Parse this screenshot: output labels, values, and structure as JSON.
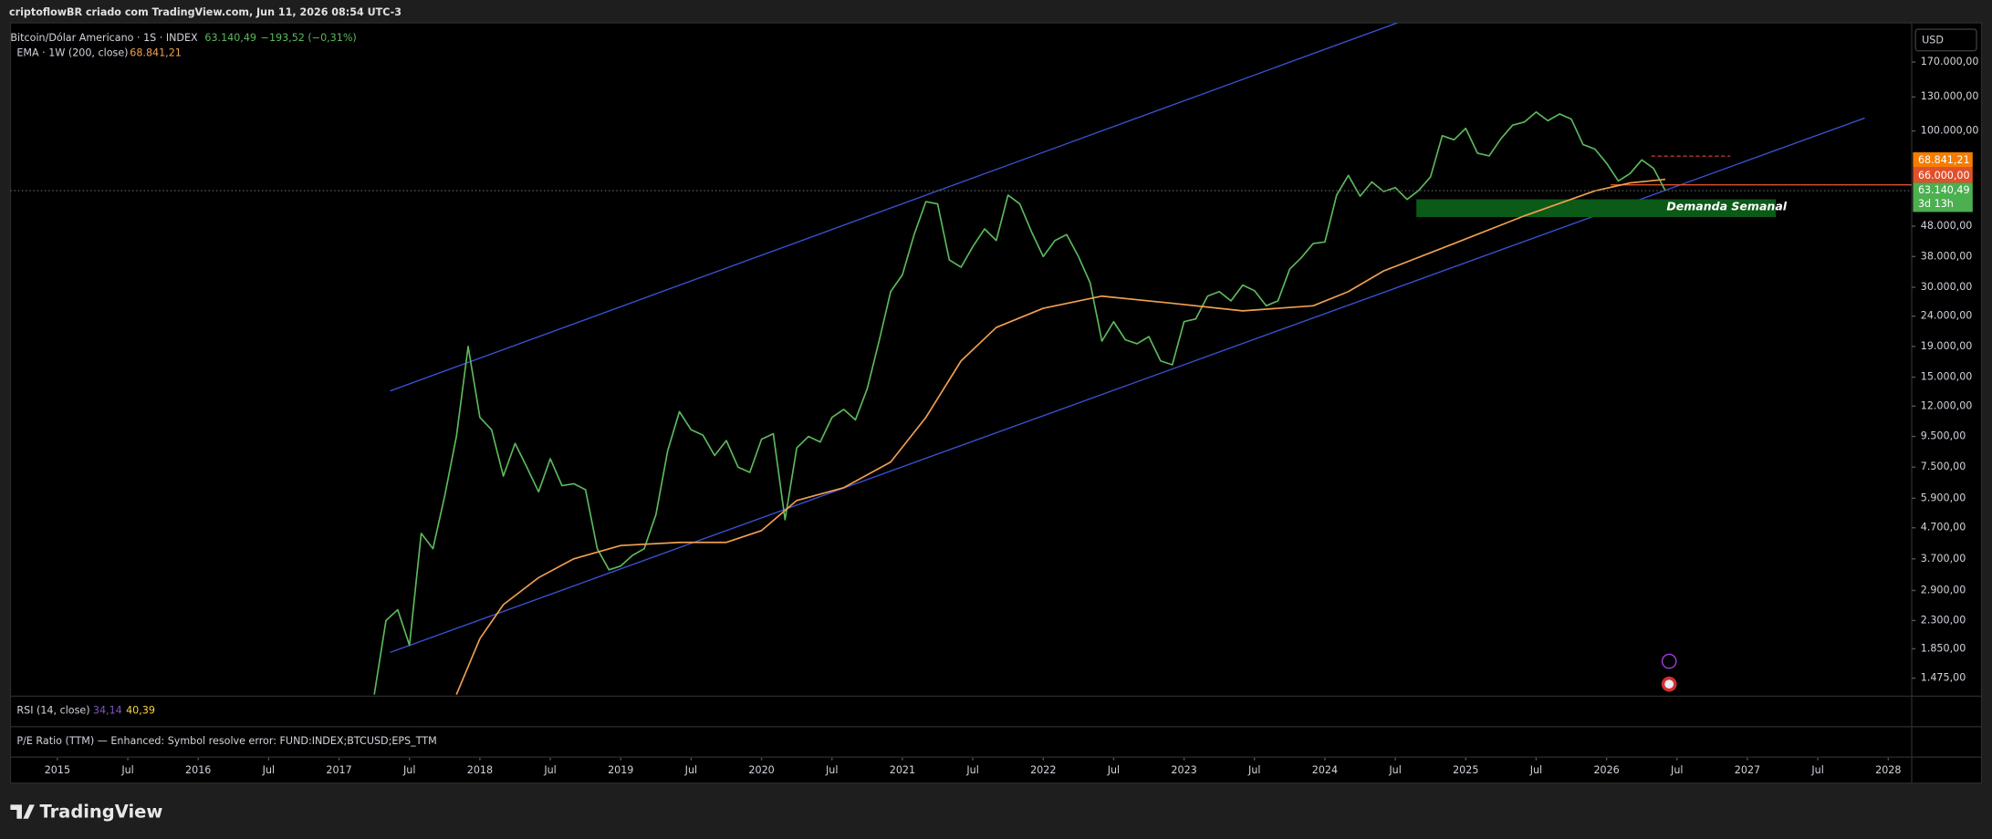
{
  "header": {
    "top_bar": "criptoflowBR criado com TradingView.com, Jun 11, 2026 08:54 UTC-3",
    "currency": "USD"
  },
  "chart_data": {
    "type": "line",
    "log_scale": true,
    "grid": false,
    "xlim": [
      "2014-09",
      "2028-03"
    ],
    "ylim": [
      1290,
      230000
    ],
    "yticks": [
      {
        "value": 170000,
        "label": "170.000,00"
      },
      {
        "value": 130000,
        "label": "130.000,00"
      },
      {
        "value": 100000,
        "label": "100.000,00"
      },
      {
        "value": 48000,
        "label": "48.000,00"
      },
      {
        "value": 38000,
        "label": "38.000,00"
      },
      {
        "value": 30000,
        "label": "30.000,00"
      },
      {
        "value": 24000,
        "label": "24.000,00"
      },
      {
        "value": 19000,
        "label": "19.000,00"
      },
      {
        "value": 15000,
        "label": "15.000,00"
      },
      {
        "value": 12000,
        "label": "12.000,00"
      },
      {
        "value": 9500,
        "label": "9.500,00"
      },
      {
        "value": 7500,
        "label": "7.500,00"
      },
      {
        "value": 5900,
        "label": "5.900,00"
      },
      {
        "value": 4700,
        "label": "4.700,00"
      },
      {
        "value": 3700,
        "label": "3.700,00"
      },
      {
        "value": 2900,
        "label": "2.900,00"
      },
      {
        "value": 2300,
        "label": "2.300,00"
      },
      {
        "value": 1850,
        "label": "1.850,00"
      },
      {
        "value": 1475,
        "label": "1.475,00"
      }
    ],
    "xticks": [
      {
        "value": "2015-01",
        "label": "2015"
      },
      {
        "value": "2015-07",
        "label": "Jul"
      },
      {
        "value": "2016-01",
        "label": "2016"
      },
      {
        "value": "2016-07",
        "label": "Jul"
      },
      {
        "value": "2017-01",
        "label": "2017"
      },
      {
        "value": "2017-07",
        "label": "Jul"
      },
      {
        "value": "2018-01",
        "label": "2018"
      },
      {
        "value": "2018-07",
        "label": "Jul"
      },
      {
        "value": "2019-01",
        "label": "2019"
      },
      {
        "value": "2019-07",
        "label": "Jul"
      },
      {
        "value": "2020-01",
        "label": "2020"
      },
      {
        "value": "2020-07",
        "label": "Jul"
      },
      {
        "value": "2021-01",
        "label": "2021"
      },
      {
        "value": "2021-07",
        "label": "Jul"
      },
      {
        "value": "2022-01",
        "label": "2022"
      },
      {
        "value": "2022-07",
        "label": "Jul"
      },
      {
        "value": "2023-01",
        "label": "2023"
      },
      {
        "value": "2023-07",
        "label": "Jul"
      },
      {
        "value": "2024-01",
        "label": "2024"
      },
      {
        "value": "2024-07",
        "label": "Jul"
      },
      {
        "value": "2025-01",
        "label": "2025"
      },
      {
        "value": "2025-07",
        "label": "Jul"
      },
      {
        "value": "2026-01",
        "label": "2026"
      },
      {
        "value": "2026-07",
        "label": "Jul"
      },
      {
        "value": "2027-01",
        "label": "2027"
      },
      {
        "value": "2027-07",
        "label": "Jul"
      },
      {
        "value": "2028-01",
        "label": "2028"
      }
    ],
    "series": [
      {
        "name": "Bitcoin/Dólar Americano · 1S · INDEX",
        "color": "#5cb85c",
        "last_value_label": "63.140,49",
        "change_label": "−193,52 (−0,31%)",
        "countdown": "3d 13h",
        "x": [
          "2017-04",
          "2017-05",
          "2017-06",
          "2017-07",
          "2017-08",
          "2017-09",
          "2017-10",
          "2017-11",
          "2017-12",
          "2018-01",
          "2018-02",
          "2018-03",
          "2018-04",
          "2018-05",
          "2018-06",
          "2018-07",
          "2018-08",
          "2018-09",
          "2018-10",
          "2018-11",
          "2018-12",
          "2019-01",
          "2019-02",
          "2019-03",
          "2019-04",
          "2019-05",
          "2019-06",
          "2019-07",
          "2019-08",
          "2019-09",
          "2019-10",
          "2019-11",
          "2019-12",
          "2020-01",
          "2020-02",
          "2020-03",
          "2020-04",
          "2020-05",
          "2020-06",
          "2020-07",
          "2020-08",
          "2020-09",
          "2020-10",
          "2020-11",
          "2020-12",
          "2021-01",
          "2021-02",
          "2021-03",
          "2021-04",
          "2021-05",
          "2021-06",
          "2021-07",
          "2021-08",
          "2021-09",
          "2021-10",
          "2021-11",
          "2021-12",
          "2022-01",
          "2022-02",
          "2022-03",
          "2022-04",
          "2022-05",
          "2022-06",
          "2022-07",
          "2022-08",
          "2022-09",
          "2022-10",
          "2022-11",
          "2022-12",
          "2023-01",
          "2023-02",
          "2023-03",
          "2023-04",
          "2023-05",
          "2023-06",
          "2023-07",
          "2023-08",
          "2023-09",
          "2023-10",
          "2023-11",
          "2023-12",
          "2024-01",
          "2024-02",
          "2024-03",
          "2024-04",
          "2024-05",
          "2024-06",
          "2024-07",
          "2024-08",
          "2024-09",
          "2024-10",
          "2024-11",
          "2024-12",
          "2025-01",
          "2025-02",
          "2025-03",
          "2025-04",
          "2025-05",
          "2025-06",
          "2025-07",
          "2025-08",
          "2025-09",
          "2025-10",
          "2025-11",
          "2025-12",
          "2026-01",
          "2026-02",
          "2026-03",
          "2026-04",
          "2026-05",
          "2026-06"
        ],
        "values": [
          1300,
          2300,
          2500,
          1900,
          4500,
          4000,
          6000,
          9500,
          19000,
          11000,
          10000,
          7000,
          9000,
          7500,
          6200,
          8000,
          6500,
          6600,
          6300,
          4000,
          3400,
          3500,
          3800,
          4000,
          5200,
          8500,
          11500,
          10000,
          9600,
          8200,
          9200,
          7500,
          7200,
          9300,
          9700,
          5000,
          8700,
          9500,
          9100,
          11000,
          11700,
          10800,
          13700,
          19700,
          29000,
          33000,
          45000,
          58000,
          57000,
          37000,
          35000,
          41000,
          47000,
          43000,
          61000,
          57000,
          46000,
          38000,
          43000,
          45000,
          38000,
          31000,
          19800,
          23000,
          20000,
          19400,
          20500,
          17000,
          16500,
          23000,
          23500,
          28000,
          29000,
          27000,
          30500,
          29200,
          26000,
          27000,
          34500,
          37700,
          42000,
          42500,
          61000,
          71000,
          60500,
          67500,
          62700,
          64600,
          59000,
          63300,
          70200,
          96400,
          93400,
          102000,
          84300,
          82500,
          94200,
          104600,
          107100,
          115700,
          108200,
          114000,
          109500,
          90000,
          87000,
          78000,
          68000,
          72000,
          80000,
          75000,
          63140.49
        ]
      },
      {
        "name": "EMA · 1W (200, close)",
        "color": "#f0a050",
        "last_value_label": "68.841,21",
        "x": [
          "2017-11",
          "2018-01",
          "2018-03",
          "2018-06",
          "2018-09",
          "2019-01",
          "2019-06",
          "2019-10",
          "2020-01",
          "2020-04",
          "2020-08",
          "2020-12",
          "2021-03",
          "2021-06",
          "2021-09",
          "2022-01",
          "2022-06",
          "2022-12",
          "2023-06",
          "2023-12",
          "2024-03",
          "2024-06",
          "2024-12",
          "2025-06",
          "2025-12",
          "2026-03",
          "2026-06"
        ],
        "values": [
          1300,
          2000,
          2600,
          3200,
          3700,
          4100,
          4200,
          4200,
          4600,
          5800,
          6400,
          7800,
          11000,
          17000,
          22000,
          25500,
          28000,
          26500,
          25000,
          26000,
          29000,
          34000,
          42000,
          52000,
          63000,
          67000,
          68841.21
        ]
      }
    ],
    "levels": [
      {
        "value": 66000,
        "label": "66.000,00",
        "color": "#e0502a"
      }
    ],
    "annotations": [
      "Demanda Semanal"
    ]
  },
  "rsi_pane": {
    "title": "RSI (14, close)",
    "rsi": "34,14",
    "ma": "40,39"
  },
  "pe_pane": {
    "title": "P/E Ratio (TTM) — Enhanced: Symbol resolve error: FUND:INDEX;BTCUSD;EPS_TTM"
  },
  "footer": {
    "logo": "TradingView"
  }
}
